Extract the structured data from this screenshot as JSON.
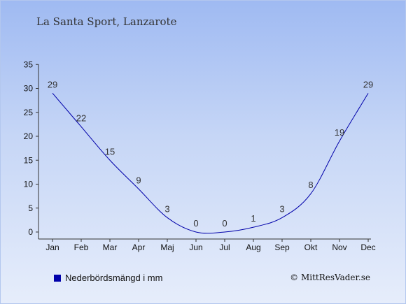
{
  "chart_data": {
    "type": "line",
    "title": "La Santa Sport, Lanzarote",
    "categories": [
      "Jan",
      "Feb",
      "Mar",
      "Apr",
      "Maj",
      "Jun",
      "Jul",
      "Aug",
      "Sep",
      "Okt",
      "Nov",
      "Dec"
    ],
    "series": [
      {
        "name": "Nederbördsmängd i mm",
        "values": [
          29,
          22,
          15,
          9,
          3,
          0,
          0,
          1,
          3,
          8,
          19,
          29
        ]
      }
    ],
    "value_labels": [
      "29",
      "22",
      "15",
      "9",
      "3",
      "0",
      "0",
      "1",
      "3",
      "8",
      "19",
      "29"
    ],
    "yticks": [
      "0",
      "5",
      "10",
      "15",
      "20",
      "25",
      "30",
      "35"
    ],
    "ylim": [
      0,
      35
    ],
    "grid": false,
    "legend": "bottom-left",
    "line_color": "#0000aa"
  },
  "credit": "© MittResVader.se"
}
